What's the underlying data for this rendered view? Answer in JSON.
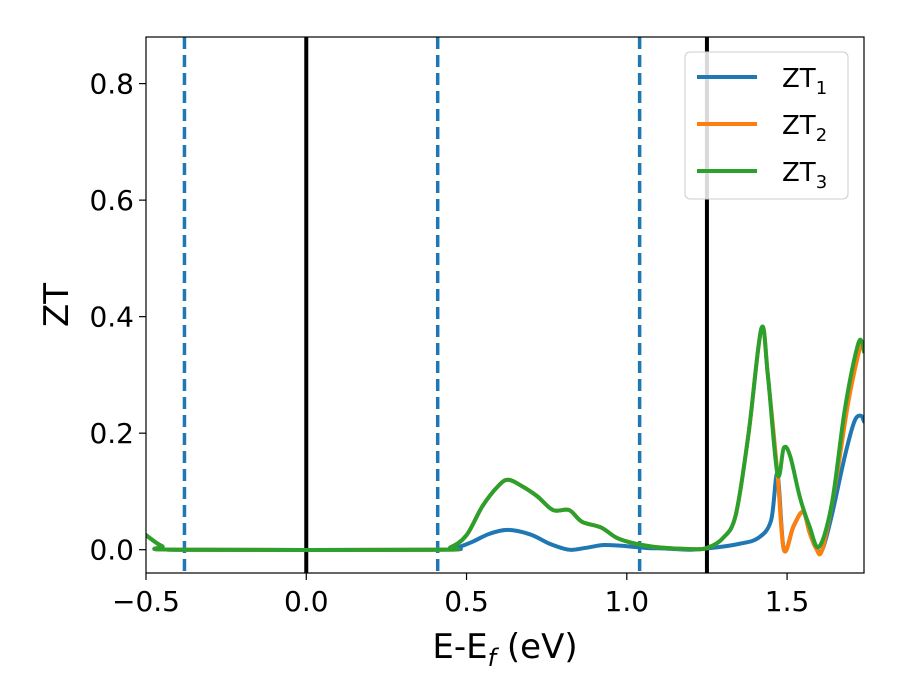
{
  "chart_data": {
    "type": "line",
    "xlabel": "E-E",
    "xlabel_sub": "f",
    "xlabel_unit": " (eV)",
    "ylabel": "ZT",
    "xlim": [
      -0.5,
      1.74
    ],
    "ylim": [
      -0.04,
      0.88
    ],
    "xticks": [
      -0.5,
      0.0,
      0.5,
      1.0,
      1.5
    ],
    "xtick_labels": [
      "−0.5",
      "0.0",
      "0.5",
      "1.0",
      "1.5"
    ],
    "yticks": [
      0.0,
      0.2,
      0.4,
      0.6,
      0.8
    ],
    "ytick_labels": [
      "0.0",
      "0.2",
      "0.4",
      "0.6",
      "0.8"
    ],
    "grid": false,
    "legend_position": "top-right",
    "vertical_lines": [
      {
        "x": -0.38,
        "style": "dashed",
        "color": "#1f77b4"
      },
      {
        "x": 0.0,
        "style": "solid",
        "color": "#000000"
      },
      {
        "x": 0.41,
        "style": "dashed",
        "color": "#1f77b4"
      },
      {
        "x": 1.04,
        "style": "dashed",
        "color": "#1f77b4"
      },
      {
        "x": 1.25,
        "style": "solid",
        "color": "#000000"
      }
    ],
    "series": [
      {
        "name": "ZT",
        "name_sub": "1",
        "color": "#1f77b4",
        "points": [
          [
            -0.5,
            0.025
          ],
          [
            -0.45,
            0.006
          ],
          [
            -0.4,
            0.0
          ],
          [
            0.4,
            0.0
          ],
          [
            0.47,
            0.004
          ],
          [
            0.52,
            0.014
          ],
          [
            0.57,
            0.027
          ],
          [
            0.63,
            0.034
          ],
          [
            0.7,
            0.026
          ],
          [
            0.76,
            0.01
          ],
          [
            0.82,
            0.0
          ],
          [
            0.87,
            0.003
          ],
          [
            0.93,
            0.008
          ],
          [
            1.0,
            0.006
          ],
          [
            1.06,
            0.003
          ],
          [
            1.12,
            0.002
          ],
          [
            1.2,
            0.0
          ],
          [
            1.28,
            0.004
          ],
          [
            1.35,
            0.01
          ],
          [
            1.41,
            0.02
          ],
          [
            1.45,
            0.05
          ],
          [
            1.47,
            0.13
          ],
          [
            1.49,
            0.0
          ],
          [
            1.52,
            0.04
          ],
          [
            1.55,
            0.065
          ],
          [
            1.57,
            0.03
          ],
          [
            1.59,
            0.003
          ],
          [
            1.61,
            0.0
          ],
          [
            1.64,
            0.06
          ],
          [
            1.68,
            0.16
          ],
          [
            1.71,
            0.22
          ],
          [
            1.73,
            0.23
          ],
          [
            1.74,
            0.22
          ]
        ]
      },
      {
        "name": "ZT",
        "name_sub": "2",
        "color": "#ff7f0e",
        "points": [
          [
            -0.5,
            0.025
          ],
          [
            -0.45,
            0.006
          ],
          [
            -0.4,
            0.0
          ],
          [
            0.4,
            0.0
          ],
          [
            0.45,
            0.004
          ],
          [
            0.5,
            0.025
          ],
          [
            0.55,
            0.075
          ],
          [
            0.6,
            0.11
          ],
          [
            0.63,
            0.12
          ],
          [
            0.67,
            0.11
          ],
          [
            0.72,
            0.092
          ],
          [
            0.77,
            0.068
          ],
          [
            0.82,
            0.068
          ],
          [
            0.86,
            0.048
          ],
          [
            0.92,
            0.038
          ],
          [
            0.97,
            0.02
          ],
          [
            1.03,
            0.01
          ],
          [
            1.1,
            0.004
          ],
          [
            1.2,
            0.001
          ],
          [
            1.25,
            0.003
          ],
          [
            1.3,
            0.02
          ],
          [
            1.34,
            0.06
          ],
          [
            1.38,
            0.2
          ],
          [
            1.42,
            0.38
          ],
          [
            1.44,
            0.3
          ],
          [
            1.47,
            0.13
          ],
          [
            1.49,
            0.0
          ],
          [
            1.52,
            0.04
          ],
          [
            1.55,
            0.065
          ],
          [
            1.57,
            0.03
          ],
          [
            1.59,
            0.003
          ],
          [
            1.61,
            0.0
          ],
          [
            1.65,
            0.11
          ],
          [
            1.69,
            0.25
          ],
          [
            1.72,
            0.33
          ],
          [
            1.735,
            0.355
          ],
          [
            1.74,
            0.34
          ]
        ]
      },
      {
        "name": "ZT",
        "name_sub": "3",
        "color": "#2ca02c",
        "points": [
          [
            -0.5,
            0.025
          ],
          [
            -0.45,
            0.006
          ],
          [
            -0.4,
            0.0
          ],
          [
            0.4,
            0.0
          ],
          [
            0.45,
            0.004
          ],
          [
            0.5,
            0.025
          ],
          [
            0.55,
            0.075
          ],
          [
            0.6,
            0.11
          ],
          [
            0.63,
            0.12
          ],
          [
            0.67,
            0.11
          ],
          [
            0.72,
            0.092
          ],
          [
            0.77,
            0.068
          ],
          [
            0.82,
            0.068
          ],
          [
            0.86,
            0.048
          ],
          [
            0.92,
            0.038
          ],
          [
            0.97,
            0.02
          ],
          [
            1.03,
            0.01
          ],
          [
            1.1,
            0.004
          ],
          [
            1.2,
            0.001
          ],
          [
            1.25,
            0.003
          ],
          [
            1.3,
            0.02
          ],
          [
            1.34,
            0.06
          ],
          [
            1.38,
            0.2
          ],
          [
            1.42,
            0.38
          ],
          [
            1.44,
            0.3
          ],
          [
            1.47,
            0.13
          ],
          [
            1.49,
            0.175
          ],
          [
            1.51,
            0.16
          ],
          [
            1.54,
            0.09
          ],
          [
            1.57,
            0.04
          ],
          [
            1.6,
            0.005
          ],
          [
            1.64,
            0.08
          ],
          [
            1.68,
            0.24
          ],
          [
            1.72,
            0.35
          ],
          [
            1.735,
            0.355
          ],
          [
            1.74,
            0.34
          ]
        ]
      }
    ]
  }
}
